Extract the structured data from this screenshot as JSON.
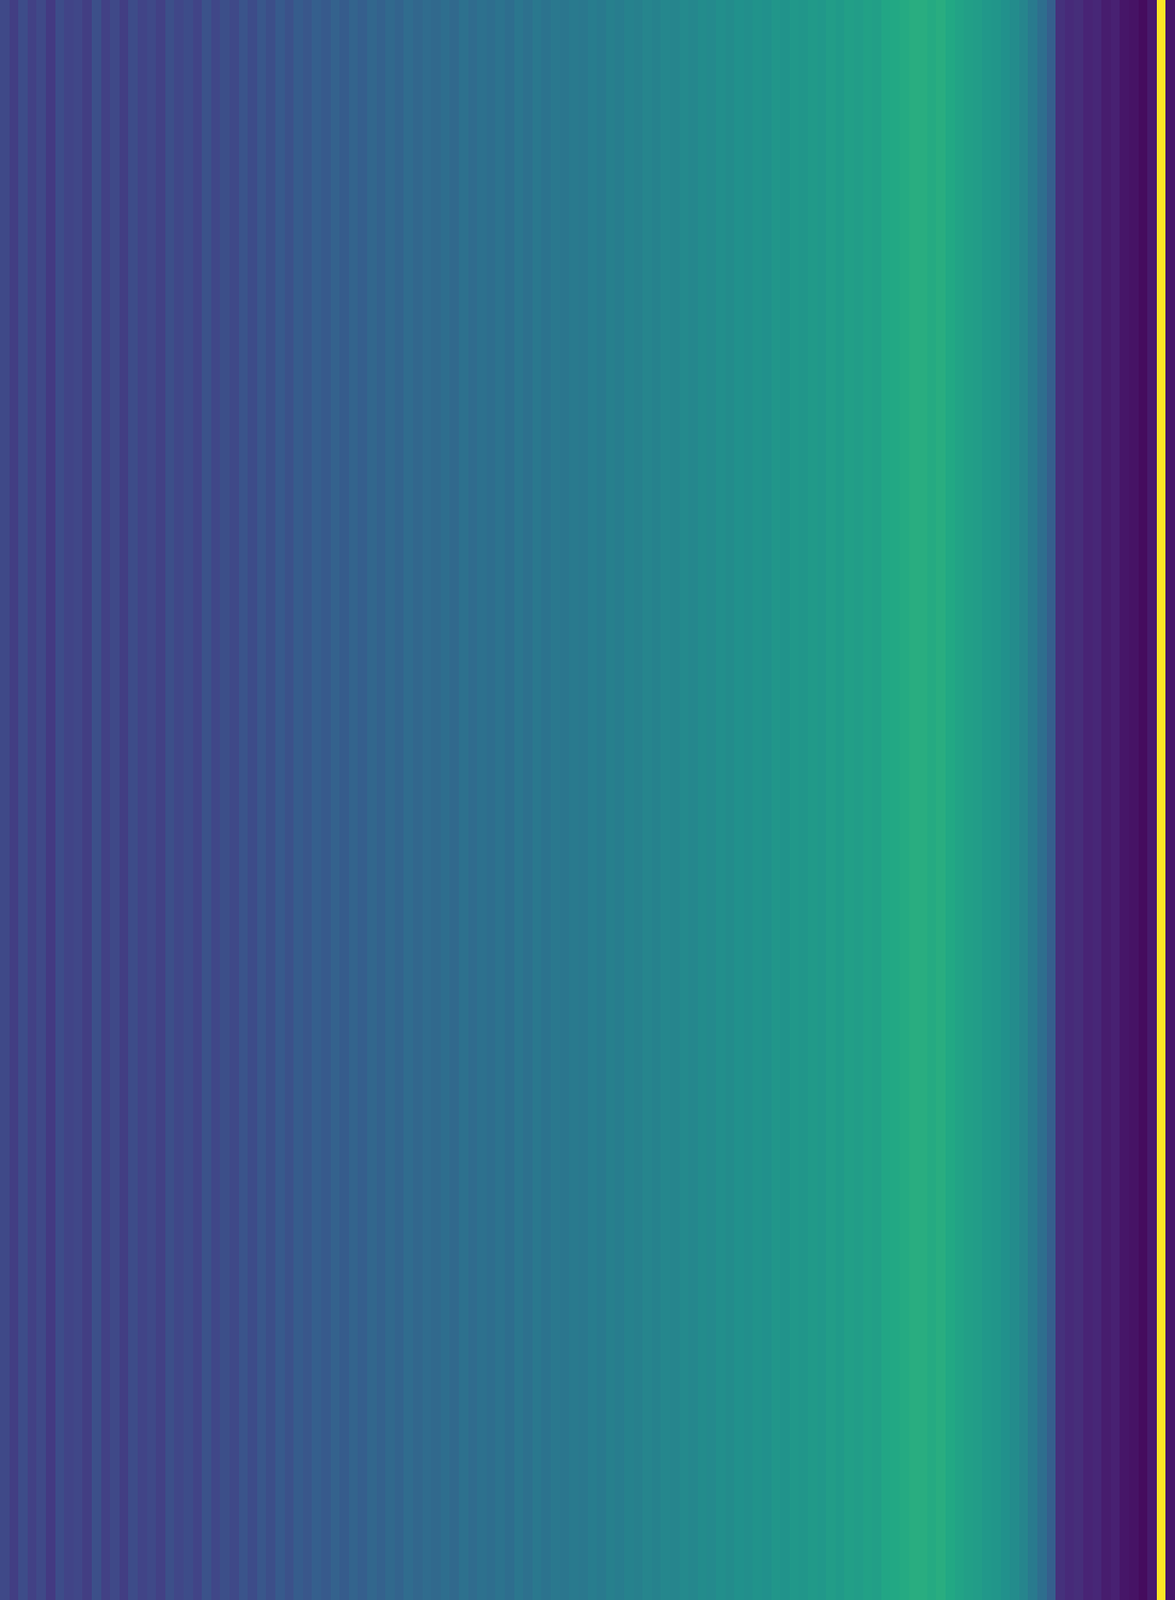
{
  "chart_data": {
    "type": "heatmap",
    "color": "viridis",
    "tick_labels": false,
    "color_range": [
      0,
      1
    ],
    "cells": [
      [
        0.22,
        0.18,
        0.23,
        0.19,
        0.22,
        0.17,
        0.23,
        0.2,
        0.21,
        0.18,
        0.24,
        0.19,
        0.22,
        0.18,
        0.23,
        0.2,
        0.22,
        0.19,
        0.24,
        0.21,
        0.23,
        0.2,
        0.25,
        0.21,
        0.24,
        0.22,
        0.26,
        0.23,
        0.27,
        0.24,
        0.28,
        0.25,
        0.29,
        0.27,
        0.3,
        0.28,
        0.31,
        0.29,
        0.32,
        0.3,
        0.33,
        0.31,
        0.34,
        0.32,
        0.35,
        0.33,
        0.35,
        0.34,
        0.36,
        0.34,
        0.37,
        0.35,
        0.37,
        0.36,
        0.38,
        0.36,
        0.39,
        0.37,
        0.4,
        0.38,
        0.4,
        0.39,
        0.41,
        0.4,
        0.42,
        0.41,
        0.43,
        0.42,
        0.44,
        0.43,
        0.45,
        0.44,
        0.46,
        0.45,
        0.47,
        0.46,
        0.48,
        0.47,
        0.49,
        0.48,
        0.5,
        0.49,
        0.51,
        0.5,
        0.52,
        0.51,
        0.53,
        0.52,
        0.54,
        0.53,
        0.55,
        0.54,
        0.56,
        0.55,
        0.57,
        0.56,
        0.59,
        0.6,
        0.61,
        0.62,
        0.62,
        0.61,
        0.62,
        0.6,
        0.58,
        0.56,
        0.55,
        0.53,
        0.52,
        0.5,
        0.48,
        0.45,
        0.41,
        0.36,
        0.3,
        0.14,
        0.12,
        0.13,
        0.1,
        0.11,
        0.08,
        0.09,
        0.06,
        0.05,
        0.03,
        0.07,
        1.0,
        0.06
      ]
    ]
  }
}
